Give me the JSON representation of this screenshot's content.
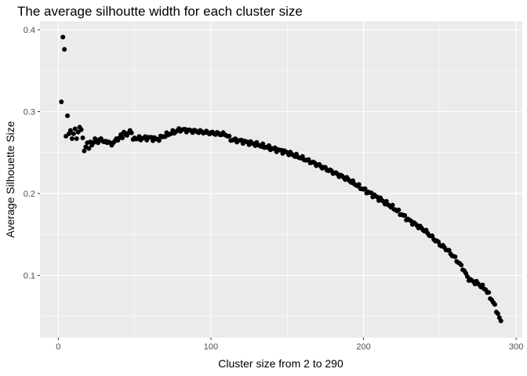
{
  "chart_data": {
    "type": "scatter",
    "title": "The average silhoutte width for each cluster size",
    "xlabel": "Cluster size from 2 to 290",
    "ylabel": "Average Silhouette Size",
    "xlim": [
      -12,
      304
    ],
    "ylim": [
      0.024,
      0.4105
    ],
    "x_ticks": [
      0,
      100,
      200,
      300
    ],
    "y_ticks": [
      0.1,
      0.2,
      0.3,
      0.4
    ],
    "x_tick_labels": [
      "0",
      "100",
      "200",
      "300"
    ],
    "y_tick_labels": [
      "0.1",
      "0.2",
      "0.3",
      "0.4"
    ],
    "grid": true,
    "point_color": "#000000",
    "panel_background": "#ebebeb",
    "grid_major_color": "#ffffff",
    "x_range": [
      2,
      290
    ],
    "points_early": [
      [
        2,
        0.312
      ],
      [
        3,
        0.391
      ],
      [
        4,
        0.376
      ],
      [
        5,
        0.27
      ],
      [
        6,
        0.295
      ],
      [
        7,
        0.273
      ],
      [
        8,
        0.277
      ],
      [
        9,
        0.267
      ],
      [
        10,
        0.273
      ],
      [
        11,
        0.279
      ],
      [
        12,
        0.267
      ],
      [
        13,
        0.275
      ],
      [
        14,
        0.281
      ],
      [
        15,
        0.278
      ],
      [
        16,
        0.268
      ],
      [
        17,
        0.252
      ],
      [
        18,
        0.257
      ],
      [
        19,
        0.262
      ],
      [
        20,
        0.255
      ],
      [
        21,
        0.263
      ],
      [
        22,
        0.259
      ],
      [
        23,
        0.262
      ],
      [
        24,
        0.267
      ],
      [
        25,
        0.265
      ],
      [
        26,
        0.262
      ],
      [
        27,
        0.266
      ],
      [
        28,
        0.267
      ],
      [
        29,
        0.264
      ],
      [
        30,
        0.263
      ],
      [
        31,
        0.264
      ],
      [
        32,
        0.262
      ],
      [
        33,
        0.263
      ],
      [
        34,
        0.262
      ],
      [
        35,
        0.259
      ],
      [
        36,
        0.262
      ],
      [
        37,
        0.264
      ],
      [
        38,
        0.267
      ],
      [
        39,
        0.265
      ],
      [
        40,
        0.268
      ],
      [
        41,
        0.272
      ],
      [
        42,
        0.268
      ],
      [
        43,
        0.275
      ],
      [
        44,
        0.272
      ],
      [
        45,
        0.271
      ],
      [
        46,
        0.274
      ],
      [
        47,
        0.277
      ],
      [
        48,
        0.274
      ],
      [
        49,
        0.266
      ],
      [
        50,
        0.268
      ]
    ],
    "curve_knots": [
      [
        50,
        0.267
      ],
      [
        60,
        0.268
      ],
      [
        65,
        0.266
      ],
      [
        70,
        0.271
      ],
      [
        80,
        0.278
      ],
      [
        85,
        0.277
      ],
      [
        90,
        0.276
      ],
      [
        100,
        0.274
      ],
      [
        110,
        0.272
      ],
      [
        113,
        0.266
      ],
      [
        120,
        0.264
      ],
      [
        130,
        0.26
      ],
      [
        140,
        0.255
      ],
      [
        150,
        0.25
      ],
      [
        160,
        0.243
      ],
      [
        170,
        0.235
      ],
      [
        180,
        0.226
      ],
      [
        190,
        0.217
      ],
      [
        200,
        0.205
      ],
      [
        210,
        0.194
      ],
      [
        220,
        0.182
      ],
      [
        230,
        0.167
      ],
      [
        240,
        0.155
      ],
      [
        250,
        0.138
      ],
      [
        255,
        0.131
      ],
      [
        260,
        0.121
      ],
      [
        265,
        0.109
      ],
      [
        268,
        0.098
      ],
      [
        270,
        0.094
      ],
      [
        275,
        0.09
      ],
      [
        280,
        0.083
      ],
      [
        285,
        0.067
      ],
      [
        288,
        0.053
      ],
      [
        290,
        0.043
      ]
    ]
  }
}
